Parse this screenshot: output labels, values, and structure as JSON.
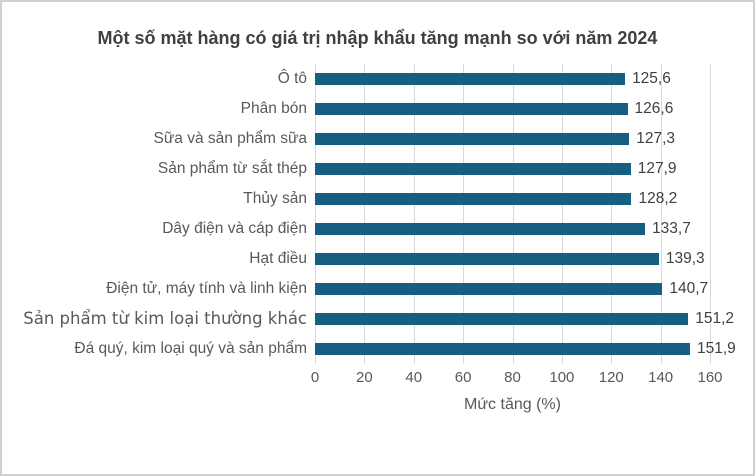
{
  "frame": {
    "background": "#ffffff",
    "border_color": "#d2d1d1"
  },
  "chart_data": {
    "type": "bar",
    "orientation": "horizontal",
    "title": "Một số mặt hàng có giá trị nhập khẩu tăng mạnh so với năm 2024",
    "categories": [
      "Ô tô",
      "Phân bón",
      "Sữa và sản phẩm sữa",
      "Sản phẩm từ sắt thép",
      "Thủy sản",
      "Dây điện và cáp điện",
      "Hạt điều",
      "Điện tử, máy tính và linh kiện",
      "Sản phẩm từ kim loại thường khác",
      "Đá quý, kim loại quý và sản phẩm"
    ],
    "values": [
      125.6,
      126.6,
      127.3,
      127.9,
      128.2,
      133.7,
      139.3,
      140.7,
      151.2,
      151.9
    ],
    "value_labels": [
      "125,6",
      "126,6",
      "127,3",
      "127,9",
      "128,2",
      "133,7",
      "139,3",
      "140,7",
      "151,2",
      "151,9"
    ],
    "xlabel": "Mức tăng (%)",
    "xlim": [
      0,
      160
    ],
    "xticks": [
      "0",
      "20",
      "40",
      "60",
      "80",
      "100",
      "120",
      "140",
      "160"
    ],
    "grid": true,
    "legend": false,
    "colors": {
      "bar": "#165f82",
      "gridline": "#d9d9d9",
      "title_text": "#404040",
      "category_text": "#595959",
      "value_text": "#404040",
      "tick_text": "#595959"
    }
  }
}
